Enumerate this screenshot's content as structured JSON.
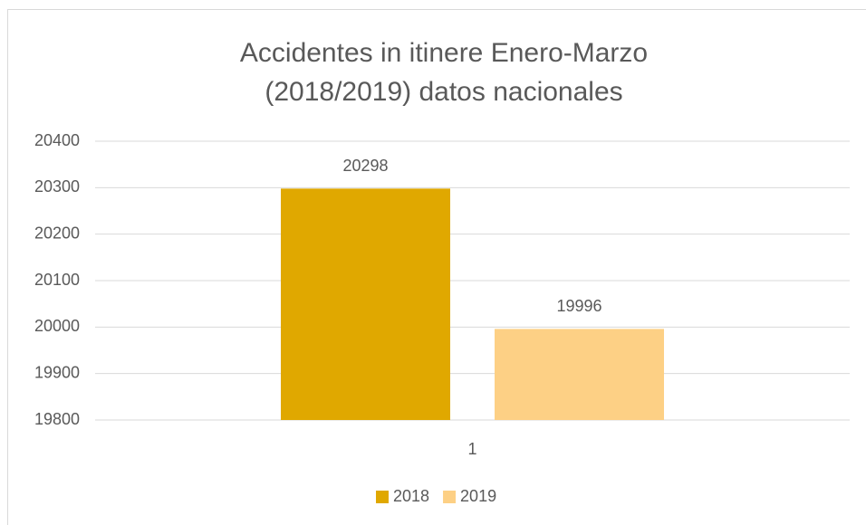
{
  "chart_data": {
    "type": "bar",
    "title": [
      "Accidentes in itinere Enero-Marzo",
      "(2018/2019) datos nacionales"
    ],
    "categories": [
      "1"
    ],
    "series": [
      {
        "name": "2018",
        "color": "#e0a800",
        "values": [
          20298
        ]
      },
      {
        "name": "2019",
        "color": "#fdd085",
        "values": [
          19996
        ]
      }
    ],
    "ylim": [
      19800,
      20400
    ],
    "yticks": [
      19800,
      19900,
      20000,
      20100,
      20200,
      20300,
      20400
    ],
    "grid": true,
    "legend": "bottom"
  }
}
